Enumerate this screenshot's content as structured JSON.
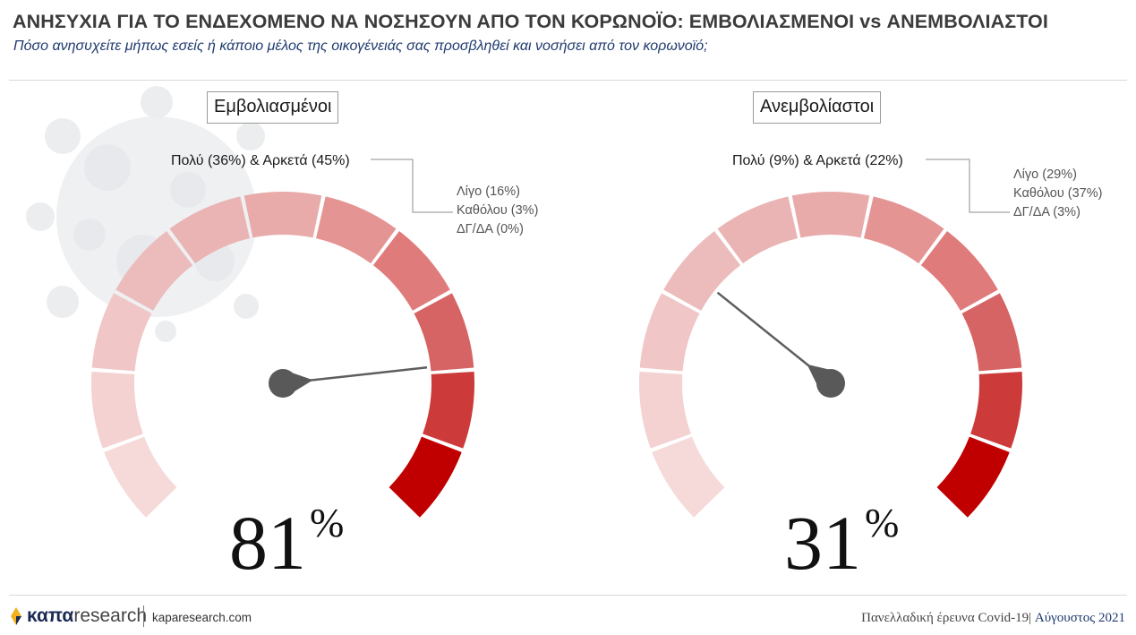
{
  "header": {
    "title": "ΑΝΗΣΥΧΙΑ ΓΙΑ ΤΟ ΕΝΔΕΧΟΜΕΝΟ ΝΑ ΝΟΣΗΣΟΥΝ ΑΠΟ ΤΟΝ ΚΟΡΩΝΟΪΟ: ΕΜΒΟΛΙΑΣΜΕΝΟΙ vs ΑΝΕΜΒΟΛΙΑΣΤΟΙ",
    "subtitle": "Πόσο ανησυχείτε μήπως εσείς ή κάποιο μέλος της οικογένειάς σας προσβληθεί και νοσήσει από τον κορωνοϊό;"
  },
  "chart_data": [
    {
      "type": "gauge",
      "group": "Εμβολιασμένοι",
      "value": 81,
      "value_unit": "%",
      "categories": [
        "Πολύ",
        "Αρκετά",
        "Λίγο",
        "Καθόλου",
        "ΔΓ/ΔΑ"
      ],
      "values": [
        36,
        45,
        16,
        3,
        0
      ],
      "label_main": "Πολύ (36%) & Αρκετά (45%)",
      "labels_other": [
        "Λίγο (16%)",
        "Καθόλου (3%)",
        "ΔΓ/ΔΑ (0%)"
      ],
      "range": [
        0,
        100
      ]
    },
    {
      "type": "gauge",
      "group": "Ανεμβολίαστοι",
      "value": 31,
      "value_unit": "%",
      "categories": [
        "Πολύ",
        "Αρκετά",
        "Λίγο",
        "Καθόλου",
        "ΔΓ/ΔΑ"
      ],
      "values": [
        9,
        22,
        29,
        37,
        3
      ],
      "label_main": "Πολύ (9%) & Αρκετά (22%)",
      "labels_other": [
        "Λίγο (29%)",
        "Καθόλου (37%)",
        "ΔΓ/ΔΑ (3%)"
      ],
      "range": [
        0,
        100
      ]
    }
  ],
  "gauge_colors": [
    "#f6dada",
    "#f4d2d2",
    "#f0c6c6",
    "#ecbcbc",
    "#eab4b4",
    "#e9aaaa",
    "#e59494",
    "#e07b7b",
    "#d76464",
    "#cc3a3a",
    "#c00000"
  ],
  "footer": {
    "logo_bold": "καπα",
    "logo_light": "research",
    "url": "kaparesearch.com",
    "note_left": "Πανελλαδική έρευνα Covid-19|",
    "note_right": "Αύγουστος 2021"
  }
}
